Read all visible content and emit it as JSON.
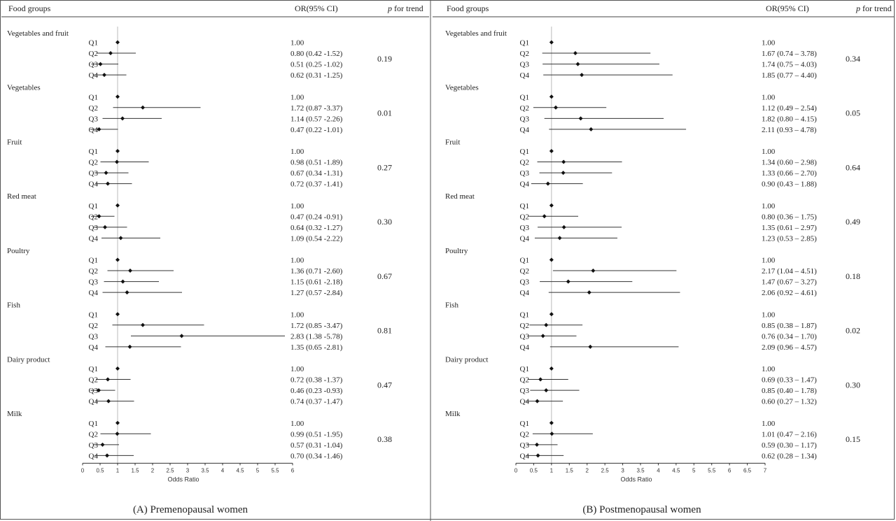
{
  "headers": {
    "food_groups": "Food groups",
    "or_ci": "OR(95% CI)",
    "p_trend_italic": "p",
    "p_trend_rest": " for trend"
  },
  "chart_data": [
    {
      "type": "forest",
      "caption": "(A) Premenopausal women",
      "xlabel": "Odds Ratio",
      "xlim": [
        0,
        6
      ],
      "xticks": [
        "0",
        "0.5",
        "1",
        "1.5",
        "2",
        "2.5",
        "3",
        "3.5",
        "4",
        "4.5",
        "5",
        "5.5",
        "6"
      ],
      "reference_line": 1,
      "groups": [
        {
          "name": "Vegetables and fruit",
          "p_trend": "0.19",
          "rows": [
            {
              "q": "Q1",
              "or": 1.0,
              "lo": 1.0,
              "hi": 1.0,
              "label": "1.00"
            },
            {
              "q": "Q2",
              "or": 0.8,
              "lo": 0.42,
              "hi": 1.52,
              "label": "0.80 (0.42 -1.52)"
            },
            {
              "q": "Q3",
              "or": 0.51,
              "lo": 0.25,
              "hi": 1.02,
              "label": "0.51 (0.25 -1.02)"
            },
            {
              "q": "Q4",
              "or": 0.62,
              "lo": 0.31,
              "hi": 1.25,
              "label": "0.62 (0.31 -1.25)"
            }
          ]
        },
        {
          "name": "Vegetables",
          "p_trend": "0.01",
          "rows": [
            {
              "q": "Q1",
              "or": 1.0,
              "lo": 1.0,
              "hi": 1.0,
              "label": "1.00"
            },
            {
              "q": "Q2",
              "or": 1.72,
              "lo": 0.87,
              "hi": 3.37,
              "label": "1.72 (0.87 -3.37)"
            },
            {
              "q": "Q3",
              "or": 1.14,
              "lo": 0.57,
              "hi": 2.26,
              "label": "1.14 (0.57 -2.26)"
            },
            {
              "q": "Q4",
              "or": 0.47,
              "lo": 0.22,
              "hi": 1.01,
              "label": "0.47 (0.22 -1.01)"
            }
          ]
        },
        {
          "name": "Fruit",
          "p_trend": "0.27",
          "rows": [
            {
              "q": "Q1",
              "or": 1.0,
              "lo": 1.0,
              "hi": 1.0,
              "label": "1.00"
            },
            {
              "q": "Q2",
              "or": 0.98,
              "lo": 0.51,
              "hi": 1.89,
              "label": "0.98 (0.51 -1.89)"
            },
            {
              "q": "Q3",
              "or": 0.67,
              "lo": 0.34,
              "hi": 1.31,
              "label": "0.67 (0.34 -1.31)"
            },
            {
              "q": "Q4",
              "or": 0.72,
              "lo": 0.37,
              "hi": 1.41,
              "label": "0.72 (0.37 -1.41)"
            }
          ]
        },
        {
          "name": "Red meat",
          "p_trend": "0.30",
          "rows": [
            {
              "q": "Q1",
              "or": 1.0,
              "lo": 1.0,
              "hi": 1.0,
              "label": "1.00"
            },
            {
              "q": "Q2",
              "or": 0.47,
              "lo": 0.24,
              "hi": 0.91,
              "label": "0.47 (0.24 -0.91)"
            },
            {
              "q": "Q3",
              "or": 0.64,
              "lo": 0.32,
              "hi": 1.27,
              "label": "0.64 (0.32 -1.27)"
            },
            {
              "q": "Q4",
              "or": 1.09,
              "lo": 0.54,
              "hi": 2.22,
              "label": "1.09 (0.54 -2.22)"
            }
          ]
        },
        {
          "name": "Poultry",
          "p_trend": "0.67",
          "rows": [
            {
              "q": "Q1",
              "or": 1.0,
              "lo": 1.0,
              "hi": 1.0,
              "label": "1.00"
            },
            {
              "q": "Q2",
              "or": 1.36,
              "lo": 0.71,
              "hi": 2.6,
              "label": "1.36 (0.71 -2.60)"
            },
            {
              "q": "Q3",
              "or": 1.15,
              "lo": 0.61,
              "hi": 2.18,
              "label": "1.15 (0.61 -2.18)"
            },
            {
              "q": "Q4",
              "or": 1.27,
              "lo": 0.57,
              "hi": 2.84,
              "label": "1.27 (0.57 -2.84)"
            }
          ]
        },
        {
          "name": "Fish",
          "p_trend": "0.81",
          "rows": [
            {
              "q": "Q1",
              "or": 1.0,
              "lo": 1.0,
              "hi": 1.0,
              "label": "1.00"
            },
            {
              "q": "Q2",
              "or": 1.72,
              "lo": 0.85,
              "hi": 3.47,
              "label": "1.72 (0.85 -3.47)"
            },
            {
              "q": "Q3",
              "or": 2.83,
              "lo": 1.38,
              "hi": 5.78,
              "label": "2.83 (1.38 -5.78)"
            },
            {
              "q": "Q4",
              "or": 1.35,
              "lo": 0.65,
              "hi": 2.81,
              "label": "1.35 (0.65 -2.81)"
            }
          ]
        },
        {
          "name": "Dairy product",
          "p_trend": "0.47",
          "rows": [
            {
              "q": "Q1",
              "or": 1.0,
              "lo": 1.0,
              "hi": 1.0,
              "label": "1.00"
            },
            {
              "q": "Q2",
              "or": 0.72,
              "lo": 0.38,
              "hi": 1.37,
              "label": "0.72 (0.38 -1.37)"
            },
            {
              "q": "Q3",
              "or": 0.46,
              "lo": 0.23,
              "hi": 0.93,
              "label": "0.46 (0.23 -0.93)"
            },
            {
              "q": "Q4",
              "or": 0.74,
              "lo": 0.37,
              "hi": 1.47,
              "label": "0.74 (0.37 -1.47)"
            }
          ]
        },
        {
          "name": "Milk",
          "p_trend": "0.38",
          "rows": [
            {
              "q": "Q1",
              "or": 1.0,
              "lo": 1.0,
              "hi": 1.0,
              "label": "1.00"
            },
            {
              "q": "Q2",
              "or": 0.99,
              "lo": 0.51,
              "hi": 1.95,
              "label": "0.99 (0.51 -1.95)"
            },
            {
              "q": "Q3",
              "or": 0.57,
              "lo": 0.31,
              "hi": 1.04,
              "label": "0.57 (0.31 -1.04)"
            },
            {
              "q": "Q4",
              "or": 0.7,
              "lo": 0.34,
              "hi": 1.46,
              "label": "0.70 (0.34 -1.46)"
            }
          ]
        }
      ]
    },
    {
      "type": "forest",
      "caption": "(B) Postmenopausal women",
      "xlabel": "Odds Ratio",
      "xlim": [
        0,
        7
      ],
      "xticks": [
        "0",
        "0.5",
        "1",
        "1.5",
        "2",
        "2.5",
        "3",
        "3.5",
        "4",
        "4.5",
        "5",
        "5.5",
        "6",
        "6.5",
        "7"
      ],
      "reference_line": 1,
      "groups": [
        {
          "name": "Vegetables and fruit",
          "p_trend": "0.34",
          "rows": [
            {
              "q": "Q1",
              "or": 1.0,
              "lo": 1.0,
              "hi": 1.0,
              "label": "1.00"
            },
            {
              "q": "Q2",
              "or": 1.67,
              "lo": 0.74,
              "hi": 3.78,
              "label": "1.67 (0.74 – 3.78)"
            },
            {
              "q": "Q3",
              "or": 1.74,
              "lo": 0.75,
              "hi": 4.03,
              "label": "1.74 (0.75 – 4.03)"
            },
            {
              "q": "Q4",
              "or": 1.85,
              "lo": 0.77,
              "hi": 4.4,
              "label": "1.85 (0.77 – 4.40)"
            }
          ]
        },
        {
          "name": "Vegetables",
          "p_trend": "0.05",
          "rows": [
            {
              "q": "Q1",
              "or": 1.0,
              "lo": 1.0,
              "hi": 1.0,
              "label": "1.00"
            },
            {
              "q": "Q2",
              "or": 1.12,
              "lo": 0.49,
              "hi": 2.54,
              "label": "1.12 (0.49 – 2.54)"
            },
            {
              "q": "Q3",
              "or": 1.82,
              "lo": 0.8,
              "hi": 4.15,
              "label": "1.82 (0.80 – 4.15)"
            },
            {
              "q": "Q4",
              "or": 2.11,
              "lo": 0.93,
              "hi": 4.78,
              "label": "2.11 (0.93 – 4.78)"
            }
          ]
        },
        {
          "name": "Fruit",
          "p_trend": "0.64",
          "rows": [
            {
              "q": "Q1",
              "or": 1.0,
              "lo": 1.0,
              "hi": 1.0,
              "label": "1.00"
            },
            {
              "q": "Q2",
              "or": 1.34,
              "lo": 0.6,
              "hi": 2.98,
              "label": "1.34 (0.60 – 2.98)"
            },
            {
              "q": "Q3",
              "or": 1.33,
              "lo": 0.66,
              "hi": 2.7,
              "label": "1.33 (0.66 – 2.70)"
            },
            {
              "q": "Q4",
              "or": 0.9,
              "lo": 0.43,
              "hi": 1.88,
              "label": "0.90 (0.43 – 1.88)"
            }
          ]
        },
        {
          "name": "Red meat",
          "p_trend": "0.49",
          "rows": [
            {
              "q": "Q1",
              "or": 1.0,
              "lo": 1.0,
              "hi": 1.0,
              "label": "1.00"
            },
            {
              "q": "Q2",
              "or": 0.8,
              "lo": 0.36,
              "hi": 1.75,
              "label": "0.80 (0.36 – 1.75)"
            },
            {
              "q": "Q3",
              "or": 1.35,
              "lo": 0.61,
              "hi": 2.97,
              "label": "1.35 (0.61 – 2.97)"
            },
            {
              "q": "Q4",
              "or": 1.23,
              "lo": 0.53,
              "hi": 2.85,
              "label": "1.23 (0.53 – 2.85)"
            }
          ]
        },
        {
          "name": "Poultry",
          "p_trend": "0.18",
          "rows": [
            {
              "q": "Q1",
              "or": 1.0,
              "lo": 1.0,
              "hi": 1.0,
              "label": "1.00"
            },
            {
              "q": "Q2",
              "or": 2.17,
              "lo": 1.04,
              "hi": 4.51,
              "label": "2.17 (1.04 – 4.51)"
            },
            {
              "q": "Q3",
              "or": 1.47,
              "lo": 0.67,
              "hi": 3.27,
              "label": "1.47 (0.67 – 3.27)"
            },
            {
              "q": "Q4",
              "or": 2.06,
              "lo": 0.92,
              "hi": 4.61,
              "label": "2.06 (0.92 – 4.61)"
            }
          ]
        },
        {
          "name": "Fish",
          "p_trend": "0.02",
          "rows": [
            {
              "q": "Q1",
              "or": 1.0,
              "lo": 1.0,
              "hi": 1.0,
              "label": "1.00"
            },
            {
              "q": "Q2",
              "or": 0.85,
              "lo": 0.38,
              "hi": 1.87,
              "label": "0.85 (0.38 – 1.87)"
            },
            {
              "q": "Q3",
              "or": 0.76,
              "lo": 0.34,
              "hi": 1.7,
              "label": "0.76 (0.34 – 1.70)"
            },
            {
              "q": "Q4",
              "or": 2.09,
              "lo": 0.96,
              "hi": 4.57,
              "label": "2.09 (0.96 – 4.57)"
            }
          ]
        },
        {
          "name": "Dairy product",
          "p_trend": "0.30",
          "rows": [
            {
              "q": "Q1",
              "or": 1.0,
              "lo": 1.0,
              "hi": 1.0,
              "label": "1.00"
            },
            {
              "q": "Q2",
              "or": 0.69,
              "lo": 0.33,
              "hi": 1.47,
              "label": "0.69 (0.33 – 1.47)"
            },
            {
              "q": "Q3",
              "or": 0.85,
              "lo": 0.4,
              "hi": 1.78,
              "label": "0.85 (0.40 – 1.78)"
            },
            {
              "q": "Q4",
              "or": 0.6,
              "lo": 0.27,
              "hi": 1.32,
              "label": "0.60 (0.27 – 1.32)"
            }
          ]
        },
        {
          "name": "Milk",
          "p_trend": "0.15",
          "rows": [
            {
              "q": "Q1",
              "or": 1.0,
              "lo": 1.0,
              "hi": 1.0,
              "label": "1.00"
            },
            {
              "q": "Q2",
              "or": 1.01,
              "lo": 0.47,
              "hi": 2.16,
              "label": "1.01 (0.47 – 2.16)"
            },
            {
              "q": "Q3",
              "or": 0.59,
              "lo": 0.3,
              "hi": 1.17,
              "label": "0.59 (0.30 – 1.17)"
            },
            {
              "q": "Q4",
              "or": 0.62,
              "lo": 0.28,
              "hi": 1.34,
              "label": "0.62 (0.28 – 1.34)"
            }
          ]
        }
      ]
    }
  ]
}
